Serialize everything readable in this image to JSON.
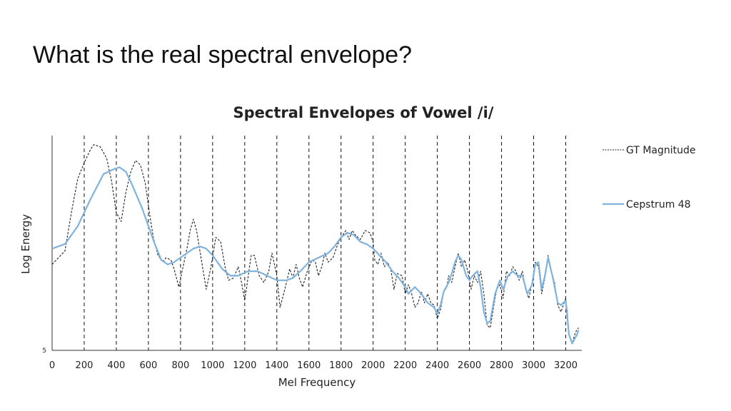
{
  "slide": {
    "title": "What is the real spectral envelope?"
  },
  "chart_data": {
    "type": "line",
    "title": "Spectral Envelopes of Vowel /i/",
    "xlabel": "Mel Frequency",
    "ylabel": "Log Energy",
    "xlim": [
      0,
      3300
    ],
    "ylim": [
      5,
      100
    ],
    "x_ticks": [
      0,
      200,
      400,
      600,
      800,
      1000,
      1200,
      1400,
      1600,
      1800,
      2000,
      2200,
      2400,
      2600,
      2800,
      3000,
      3200
    ],
    "y_tick_labels": [
      {
        "value": 5,
        "label": "5"
      }
    ],
    "vertical_gridlines": [
      200,
      400,
      600,
      800,
      1000,
      1200,
      1400,
      1600,
      1800,
      2000,
      2200,
      2400,
      2600,
      2800,
      3000,
      3200
    ],
    "legend": "right",
    "series": [
      {
        "name": "GT Magnitude",
        "style": "dashed",
        "color": "#222222",
        "points": [
          [
            0,
            43
          ],
          [
            80,
            49
          ],
          [
            120,
            66
          ],
          [
            160,
            81
          ],
          [
            200,
            88
          ],
          [
            240,
            94
          ],
          [
            260,
            96
          ],
          [
            300,
            95
          ],
          [
            340,
            90
          ],
          [
            370,
            80
          ],
          [
            400,
            66
          ],
          [
            430,
            62
          ],
          [
            460,
            75
          ],
          [
            490,
            84
          ],
          [
            520,
            89
          ],
          [
            550,
            87
          ],
          [
            580,
            79
          ],
          [
            610,
            64
          ],
          [
            630,
            55
          ],
          [
            660,
            47
          ],
          [
            690,
            44
          ],
          [
            710,
            46
          ],
          [
            740,
            45
          ],
          [
            760,
            41
          ],
          [
            790,
            33
          ],
          [
            810,
            40
          ],
          [
            840,
            50
          ],
          [
            860,
            58
          ],
          [
            880,
            63
          ],
          [
            900,
            58
          ],
          [
            930,
            45
          ],
          [
            960,
            32
          ],
          [
            990,
            42
          ],
          [
            1020,
            55
          ],
          [
            1050,
            53
          ],
          [
            1080,
            41
          ],
          [
            1100,
            36
          ],
          [
            1130,
            37
          ],
          [
            1160,
            42
          ],
          [
            1180,
            35
          ],
          [
            1200,
            27
          ],
          [
            1210,
            32
          ],
          [
            1240,
            47
          ],
          [
            1260,
            47
          ],
          [
            1290,
            38
          ],
          [
            1320,
            35
          ],
          [
            1350,
            40
          ],
          [
            1370,
            48
          ],
          [
            1400,
            38
          ],
          [
            1420,
            24
          ],
          [
            1450,
            32
          ],
          [
            1480,
            41
          ],
          [
            1500,
            37
          ],
          [
            1520,
            43
          ],
          [
            1540,
            37
          ],
          [
            1560,
            33
          ],
          [
            1590,
            40
          ],
          [
            1620,
            45
          ],
          [
            1640,
            44
          ],
          [
            1660,
            38
          ],
          [
            1680,
            42
          ],
          [
            1700,
            48
          ],
          [
            1720,
            44
          ],
          [
            1750,
            46
          ],
          [
            1780,
            52
          ],
          [
            1800,
            55
          ],
          [
            1830,
            58
          ],
          [
            1850,
            54
          ],
          [
            1870,
            58
          ],
          [
            1890,
            56
          ],
          [
            1920,
            54
          ],
          [
            1950,
            58
          ],
          [
            1980,
            57
          ],
          [
            2000,
            53
          ],
          [
            2010,
            45
          ],
          [
            2030,
            43
          ],
          [
            2050,
            48
          ],
          [
            2070,
            42
          ],
          [
            2090,
            44
          ],
          [
            2110,
            41
          ],
          [
            2130,
            32
          ],
          [
            2150,
            39
          ],
          [
            2180,
            38
          ],
          [
            2200,
            30
          ],
          [
            2220,
            34
          ],
          [
            2240,
            30
          ],
          [
            2260,
            24
          ],
          [
            2280,
            26
          ],
          [
            2300,
            31
          ],
          [
            2320,
            26
          ],
          [
            2340,
            30
          ],
          [
            2360,
            26
          ],
          [
            2380,
            25
          ],
          [
            2400,
            19
          ],
          [
            2420,
            23
          ],
          [
            2440,
            31
          ],
          [
            2460,
            33
          ],
          [
            2470,
            38
          ],
          [
            2490,
            35
          ],
          [
            2510,
            42
          ],
          [
            2530,
            48
          ],
          [
            2550,
            42
          ],
          [
            2570,
            45
          ],
          [
            2590,
            40
          ],
          [
            2610,
            32
          ],
          [
            2630,
            38
          ],
          [
            2650,
            35
          ],
          [
            2670,
            40
          ],
          [
            2690,
            30
          ],
          [
            2710,
            16
          ],
          [
            2730,
            15
          ],
          [
            2750,
            24
          ],
          [
            2770,
            32
          ],
          [
            2790,
            34
          ],
          [
            2810,
            28
          ],
          [
            2830,
            40
          ],
          [
            2850,
            38
          ],
          [
            2870,
            42
          ],
          [
            2890,
            40
          ],
          [
            2910,
            36
          ],
          [
            2930,
            40
          ],
          [
            2950,
            32
          ],
          [
            2970,
            28
          ],
          [
            2990,
            35
          ],
          [
            3010,
            44
          ],
          [
            3030,
            42
          ],
          [
            3050,
            30
          ],
          [
            3070,
            37
          ],
          [
            3090,
            47
          ],
          [
            3110,
            40
          ],
          [
            3130,
            35
          ],
          [
            3150,
            25
          ],
          [
            3170,
            22
          ],
          [
            3180,
            24
          ],
          [
            3200,
            28
          ],
          [
            3210,
            22
          ],
          [
            3220,
            12
          ],
          [
            3240,
            8
          ],
          [
            3260,
            13
          ],
          [
            3280,
            15
          ]
        ]
      },
      {
        "name": "Cepstrum 48",
        "style": "solid",
        "color": "#7fb2dc",
        "points": [
          [
            0,
            50
          ],
          [
            80,
            52
          ],
          [
            160,
            60
          ],
          [
            240,
            72
          ],
          [
            320,
            83
          ],
          [
            380,
            85
          ],
          [
            420,
            86
          ],
          [
            460,
            84
          ],
          [
            500,
            78
          ],
          [
            560,
            68
          ],
          [
            600,
            60
          ],
          [
            640,
            52
          ],
          [
            680,
            45
          ],
          [
            720,
            43
          ],
          [
            760,
            44
          ],
          [
            820,
            47
          ],
          [
            880,
            50
          ],
          [
            920,
            51
          ],
          [
            960,
            50
          ],
          [
            1000,
            47
          ],
          [
            1060,
            41
          ],
          [
            1110,
            38
          ],
          [
            1160,
            38
          ],
          [
            1220,
            40
          ],
          [
            1280,
            40
          ],
          [
            1340,
            38
          ],
          [
            1400,
            36
          ],
          [
            1460,
            36
          ],
          [
            1500,
            37
          ],
          [
            1560,
            41
          ],
          [
            1600,
            44
          ],
          [
            1660,
            46
          ],
          [
            1720,
            48
          ],
          [
            1760,
            51
          ],
          [
            1800,
            55
          ],
          [
            1840,
            57
          ],
          [
            1880,
            56
          ],
          [
            1920,
            53
          ],
          [
            1960,
            52
          ],
          [
            2000,
            50
          ],
          [
            2040,
            47
          ],
          [
            2080,
            44
          ],
          [
            2120,
            40
          ],
          [
            2160,
            37
          ],
          [
            2200,
            33
          ],
          [
            2220,
            30
          ],
          [
            2260,
            33
          ],
          [
            2300,
            30
          ],
          [
            2340,
            26
          ],
          [
            2380,
            24
          ],
          [
            2400,
            21
          ],
          [
            2420,
            25
          ],
          [
            2440,
            31
          ],
          [
            2470,
            35
          ],
          [
            2490,
            39
          ],
          [
            2510,
            44
          ],
          [
            2530,
            47
          ],
          [
            2550,
            45
          ],
          [
            2580,
            38
          ],
          [
            2600,
            36
          ],
          [
            2620,
            38
          ],
          [
            2650,
            40
          ],
          [
            2670,
            33
          ],
          [
            2690,
            22
          ],
          [
            2710,
            17
          ],
          [
            2730,
            18
          ],
          [
            2760,
            30
          ],
          [
            2790,
            36
          ],
          [
            2810,
            32
          ],
          [
            2840,
            38
          ],
          [
            2870,
            40
          ],
          [
            2900,
            38
          ],
          [
            2930,
            38
          ],
          [
            2960,
            30
          ],
          [
            2990,
            34
          ],
          [
            3010,
            43
          ],
          [
            3030,
            44
          ],
          [
            3050,
            32
          ],
          [
            3070,
            38
          ],
          [
            3090,
            46
          ],
          [
            3120,
            37
          ],
          [
            3150,
            26
          ],
          [
            3170,
            25
          ],
          [
            3200,
            27
          ],
          [
            3220,
            12
          ],
          [
            3240,
            8
          ],
          [
            3270,
            12
          ],
          [
            3280,
            14
          ]
        ]
      }
    ]
  }
}
